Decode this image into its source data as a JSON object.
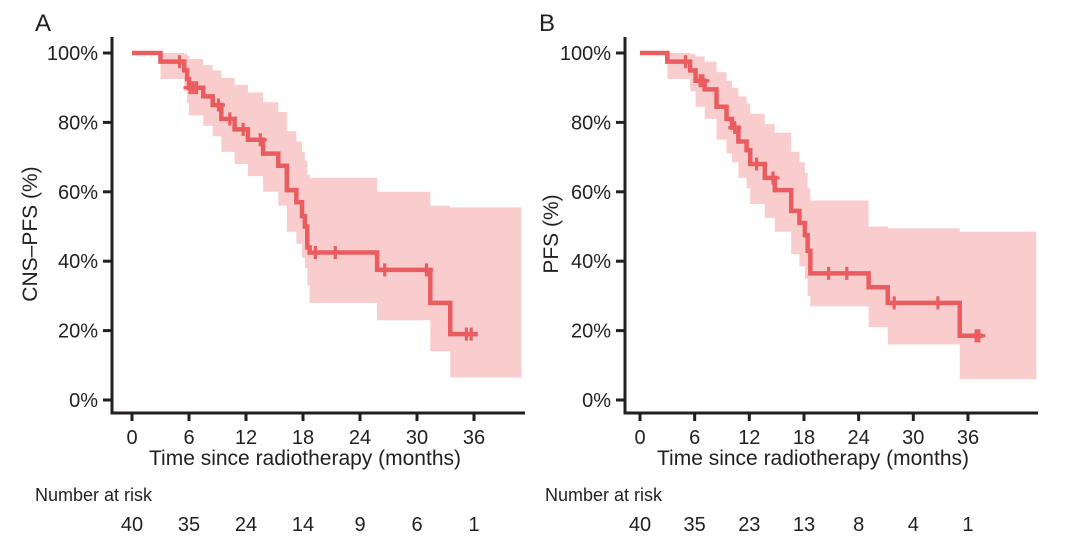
{
  "figure": {
    "background": "#ffffff",
    "text_color": "#231f20",
    "axis_color": "#231f20"
  },
  "chart_data": [
    {
      "type": "line",
      "subtype": "kaplan-meier-step-with-ci-band",
      "panel": "A",
      "ylabel": "CNS–PFS (%)",
      "xlabel": "Time since radiotherapy (months)",
      "xlim": [
        0,
        39
      ],
      "ylim": [
        0,
        100
      ],
      "xticks": [
        0,
        6,
        12,
        18,
        24,
        30,
        36
      ],
      "yticks": [
        "0%",
        "20%",
        "40%",
        "60%",
        "80%",
        "100%"
      ],
      "grid": false,
      "legend": "none",
      "line_color": "#e95c5f",
      "band_color": "#f9cdcd",
      "steps": [
        [
          0,
          100
        ],
        [
          3,
          97.5
        ],
        [
          5.5,
          95
        ],
        [
          5.8,
          92.5
        ],
        [
          6.0,
          90
        ],
        [
          7.5,
          87.5
        ],
        [
          8.5,
          85
        ],
        [
          9.4,
          81
        ],
        [
          10.8,
          78
        ],
        [
          12.2,
          75
        ],
        [
          13.8,
          71
        ],
        [
          15.4,
          67.5
        ],
        [
          16.3,
          60.5
        ],
        [
          17.3,
          57
        ],
        [
          17.9,
          53
        ],
        [
          18.2,
          50
        ],
        [
          18.45,
          44
        ],
        [
          18.7,
          42.5
        ],
        [
          25.8,
          37.5
        ],
        [
          31.4,
          28
        ],
        [
          33.5,
          19
        ]
      ],
      "end_time": 36.4,
      "censors": [
        [
          5.0,
          97.5
        ],
        [
          6.1,
          90
        ],
        [
          6.45,
          90
        ],
        [
          6.8,
          90
        ],
        [
          9.1,
          85
        ],
        [
          10.3,
          81
        ],
        [
          11.7,
          78
        ],
        [
          13.5,
          75
        ],
        [
          19.3,
          42.5
        ],
        [
          21.4,
          42.5
        ],
        [
          26.6,
          37.5
        ],
        [
          31.0,
          37.5
        ],
        [
          35.2,
          19
        ],
        [
          35.7,
          19
        ]
      ],
      "band": [
        [
          3,
          92.5,
          100
        ],
        [
          5.5,
          89,
          99.8
        ],
        [
          5.8,
          85.5,
          99.2
        ],
        [
          6.0,
          82,
          98.3
        ],
        [
          7.5,
          79,
          96.5
        ],
        [
          8.5,
          76,
          95
        ],
        [
          9.4,
          71.5,
          92.8
        ],
        [
          10.8,
          68,
          90.8
        ],
        [
          12.2,
          64.5,
          88.6
        ],
        [
          13.8,
          60,
          85.8
        ],
        [
          15.4,
          56,
          83
        ],
        [
          16.3,
          48.5,
          77.5
        ],
        [
          17.3,
          45,
          74.5
        ],
        [
          17.9,
          41,
          71.5
        ],
        [
          18.2,
          38,
          69
        ],
        [
          18.45,
          33,
          65
        ],
        [
          18.7,
          28,
          64
        ],
        [
          25.8,
          23,
          60
        ],
        [
          31.4,
          14,
          56
        ],
        [
          33.5,
          6.5,
          55.5
        ]
      ],
      "band_end_time": 41,
      "number_at_risk": {
        "label": "Number at risk",
        "times": [
          0,
          6,
          12,
          18,
          24,
          30,
          36
        ],
        "counts": [
          40,
          35,
          24,
          14,
          9,
          6,
          1
        ]
      }
    },
    {
      "type": "line",
      "subtype": "kaplan-meier-step-with-ci-band",
      "panel": "B",
      "ylabel": "PFS (%)",
      "xlabel": "Time since radiotherapy (months)",
      "xlim": [
        0,
        39
      ],
      "ylim": [
        0,
        100
      ],
      "xticks": [
        0,
        6,
        12,
        18,
        24,
        30,
        36
      ],
      "yticks": [
        "0%",
        "20%",
        "40%",
        "60%",
        "80%",
        "100%"
      ],
      "grid": false,
      "legend": "none",
      "line_color": "#e95c5f",
      "band_color": "#f9cdcd",
      "steps": [
        [
          0,
          100
        ],
        [
          3,
          97.5
        ],
        [
          5.5,
          95
        ],
        [
          6.1,
          92
        ],
        [
          7.1,
          89.5
        ],
        [
          8.4,
          84.5
        ],
        [
          9.5,
          81
        ],
        [
          10.1,
          78.5
        ],
        [
          10.8,
          74.5
        ],
        [
          11.7,
          72
        ],
        [
          12.1,
          68
        ],
        [
          13.7,
          64
        ],
        [
          14.8,
          60.5
        ],
        [
          16.6,
          54.5
        ],
        [
          17.5,
          51
        ],
        [
          18.1,
          47.5
        ],
        [
          18.4,
          43
        ],
        [
          18.7,
          36.5
        ],
        [
          25.1,
          32.5
        ],
        [
          27.2,
          28
        ],
        [
          35.1,
          18.5
        ]
      ],
      "end_time": 37.6,
      "censors": [
        [
          5.0,
          97.5
        ],
        [
          6.6,
          92
        ],
        [
          6.9,
          92
        ],
        [
          10.4,
          78.5
        ],
        [
          12.8,
          68
        ],
        [
          14.6,
          64
        ],
        [
          20.7,
          36.5
        ],
        [
          22.7,
          36.5
        ],
        [
          27.9,
          28
        ],
        [
          32.7,
          28
        ],
        [
          36.9,
          18.5
        ],
        [
          37.2,
          18.5
        ]
      ],
      "band": [
        [
          3,
          92.5,
          100
        ],
        [
          5.5,
          89,
          99.8
        ],
        [
          6.1,
          84.5,
          99
        ],
        [
          7.1,
          81,
          97.5
        ],
        [
          8.4,
          75,
          94.5
        ],
        [
          9.5,
          71,
          92
        ],
        [
          10.1,
          68.5,
          90
        ],
        [
          10.8,
          64,
          87.5
        ],
        [
          11.7,
          61,
          85.5
        ],
        [
          12.1,
          56.5,
          82.5
        ],
        [
          13.7,
          52.5,
          79.5
        ],
        [
          14.8,
          48.5,
          77
        ],
        [
          16.6,
          42,
          71.5
        ],
        [
          17.5,
          38.5,
          68.5
        ],
        [
          18.1,
          35,
          65.5
        ],
        [
          18.4,
          30,
          61
        ],
        [
          18.7,
          27,
          57.5
        ],
        [
          25.1,
          21,
          50
        ],
        [
          27.2,
          16,
          49.5
        ],
        [
          35.1,
          6,
          48.5
        ]
      ],
      "band_end_time": 43.5,
      "number_at_risk": {
        "label": "Number at risk",
        "times": [
          0,
          6,
          12,
          18,
          24,
          30,
          36
        ],
        "counts": [
          40,
          35,
          23,
          13,
          8,
          4,
          1
        ]
      }
    }
  ]
}
